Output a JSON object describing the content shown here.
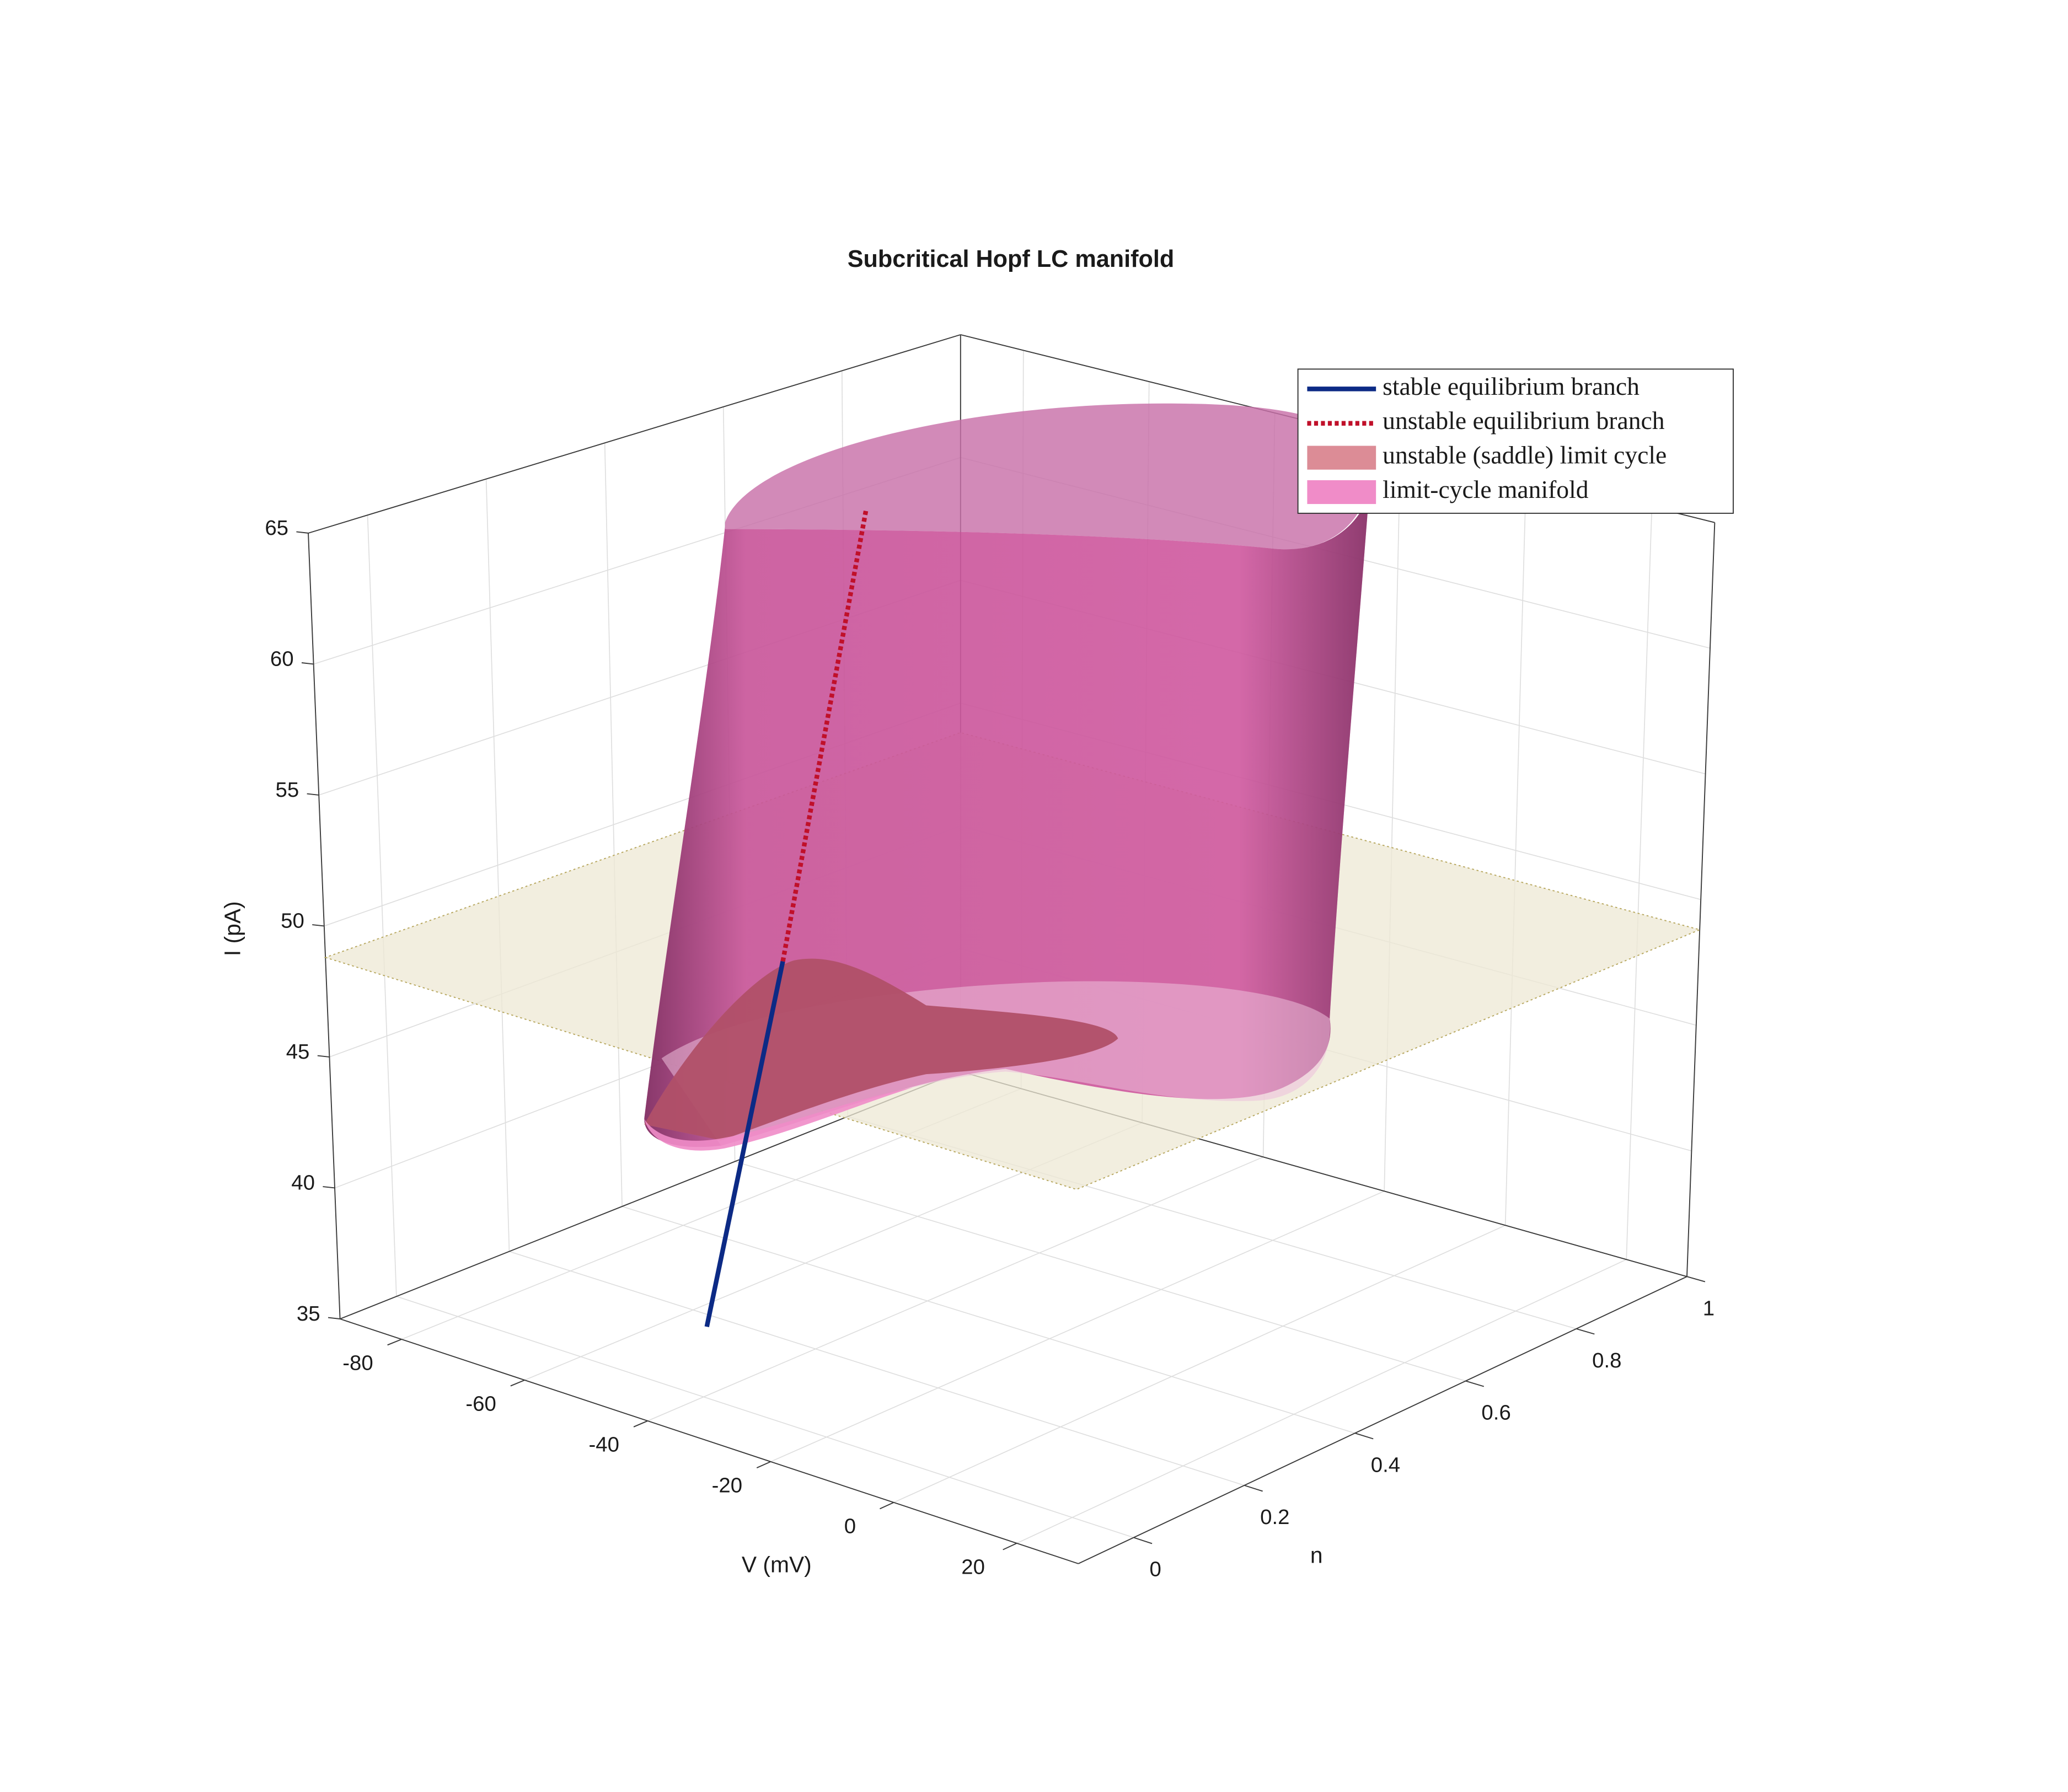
{
  "chart_data": {
    "type": "surface3d",
    "title": "Subcritical Hopf LC manifold",
    "xlabel": "V (mV)",
    "ylabel": "n",
    "zlabel": "I (pA)",
    "xlim": [
      -90,
      30
    ],
    "ylim": [
      -0.1,
      1
    ],
    "zlim": [
      35,
      65
    ],
    "xticks": [
      -80,
      -60,
      -40,
      -20,
      0,
      20
    ],
    "yticks": [
      0,
      0.2,
      0.4,
      0.6,
      0.8,
      1
    ],
    "zticks": [
      35,
      40,
      45,
      50,
      55,
      60,
      65
    ],
    "grid": true,
    "legend": "northeast",
    "plane": {
      "z": 48.8,
      "color": "#ede8d4"
    },
    "series": [
      {
        "name": "stable equilibrium branch",
        "kind": "line",
        "style": "solid",
        "color": "#0c2a85",
        "x": [
          -55,
          -49
        ],
        "y": [
          0.17,
          0.25
        ],
        "z": [
          35,
          48.8
        ]
      },
      {
        "name": "unstable equilibrium branch",
        "kind": "line",
        "style": "dotted",
        "color": "#c0102a",
        "x": [
          -49,
          -60
        ],
        "y": [
          0.25,
          0.52
        ],
        "z": [
          48.8,
          63.5
        ]
      },
      {
        "name": "unstable (saddle) limit cycle",
        "kind": "surface",
        "color": "#dc8c96"
      },
      {
        "name": "limit-cycle manifold",
        "kind": "surface",
        "color": "#f08cc8"
      }
    ]
  }
}
